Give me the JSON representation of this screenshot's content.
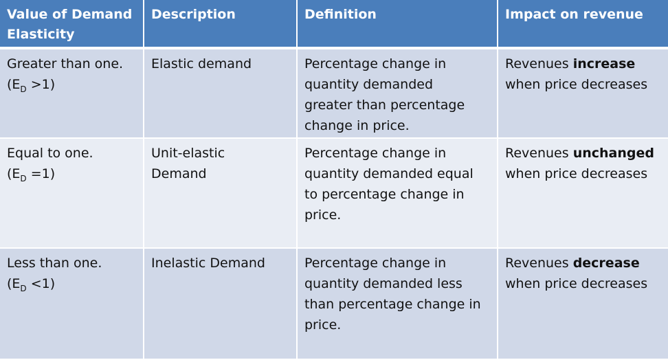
{
  "header": {
    "col1_line1": "Value of Demand",
    "col1_line2": "Elasticity",
    "col2": "Description",
    "col3": "Definition",
    "col4": "Impact on revenue"
  },
  "rows": [
    {
      "value_line1": "Greater than one.",
      "value_prefix": "(E",
      "value_sub": "D",
      "value_suffix": " >1)",
      "description_line1": "Elastic demand",
      "description_line2": "",
      "definition_lines": [
        "Percentage change in",
        "quantity demanded",
        "greater than percentage",
        "change in price."
      ],
      "impact_prefix": "Revenues ",
      "impact_bold": "increase",
      "impact_line2": "when price decreases"
    },
    {
      "value_line1": "Equal to one.",
      "value_prefix": "(E",
      "value_sub": "D",
      "value_suffix": " =1)",
      "description_line1": "Unit-elastic",
      "description_line2": "Demand",
      "definition_lines": [
        "Percentage change in",
        "quantity demanded equal",
        "to percentage change in",
        "price."
      ],
      "impact_prefix": "Revenues ",
      "impact_bold": "unchanged",
      "impact_line2": "when price decreases"
    },
    {
      "value_line1": "Less than one.",
      "value_prefix": "(E",
      "value_sub": "D",
      "value_suffix": " <1)",
      "description_line1": "Inelastic Demand",
      "description_line2": "",
      "definition_lines": [
        "Percentage change in",
        "quantity demanded less",
        "than percentage change in",
        "price."
      ],
      "impact_prefix": "Revenues ",
      "impact_bold": "decrease",
      "impact_line2": "when price decreases"
    }
  ],
  "colors": {
    "header_bg": "#4a7ebb",
    "row_dark_bg": "#d0d8e8",
    "row_light_bg": "#e9edf4"
  }
}
